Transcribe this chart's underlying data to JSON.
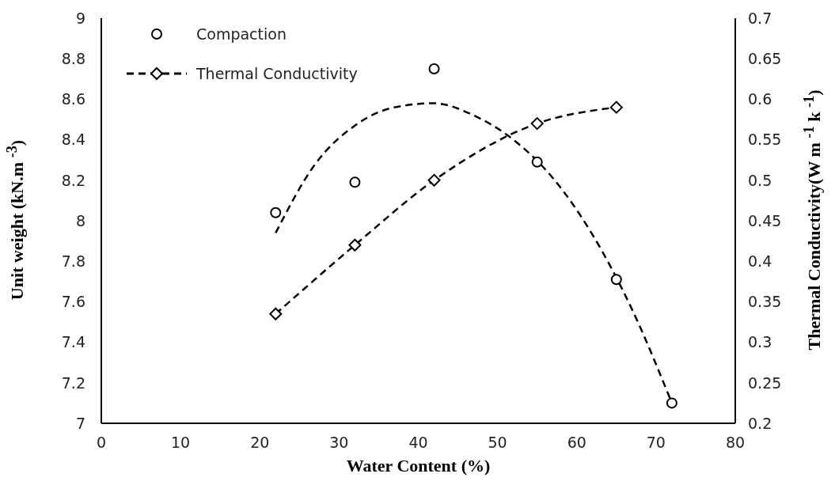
{
  "chart_data": {
    "type": "scatter",
    "xlabel": "Water Content (%)",
    "ylabel": "Unit weight (kN.m $^{-3}$)",
    "y2label": "Thermal Conductivity(W m $^{-1}$ k $^{-1}$)",
    "xlim": [
      0,
      80
    ],
    "xticks": [
      0,
      10,
      20,
      30,
      40,
      50,
      60,
      70,
      80
    ],
    "ylim": [
      7,
      9
    ],
    "yticks": [
      7,
      7.2,
      7.4,
      7.6,
      7.8,
      8,
      8.2,
      8.4,
      8.6,
      8.8,
      9
    ],
    "y2lim": [
      0.2,
      0.7
    ],
    "y2ticks": [
      0.2,
      0.25,
      0.3,
      0.35,
      0.4,
      0.45,
      0.5,
      0.55,
      0.6,
      0.65,
      0.7
    ],
    "grid": false,
    "legend": "top left",
    "series": [
      {
        "name": "Compaction",
        "marker": "circle",
        "color": "#000000",
        "x": [
          22,
          32,
          42,
          55,
          65,
          72
        ],
        "values": [
          8.04,
          8.19,
          8.75,
          8.29,
          7.71,
          7.1
        ]
      },
      {
        "name": "Thermal Conductivity",
        "type": "line",
        "axis": "y2",
        "marker": "diamond",
        "line_style": "dashed",
        "color": "#000000",
        "x": [
          22,
          32,
          42,
          55,
          65
        ],
        "values": [
          0.335,
          0.42,
          0.5,
          0.57,
          0.59
        ]
      },
      {
        "type": "line",
        "marker": "none",
        "line_style": "dashed",
        "color": "#000000",
        "x": [
          22,
          27,
          32,
          37,
          42,
          47,
          52,
          57,
          62,
          67,
          72
        ],
        "values": [
          7.94,
          8.28,
          8.47,
          8.56,
          8.58,
          8.52,
          8.4,
          8.21,
          7.93,
          7.56,
          7.1
        ]
      }
    ]
  }
}
